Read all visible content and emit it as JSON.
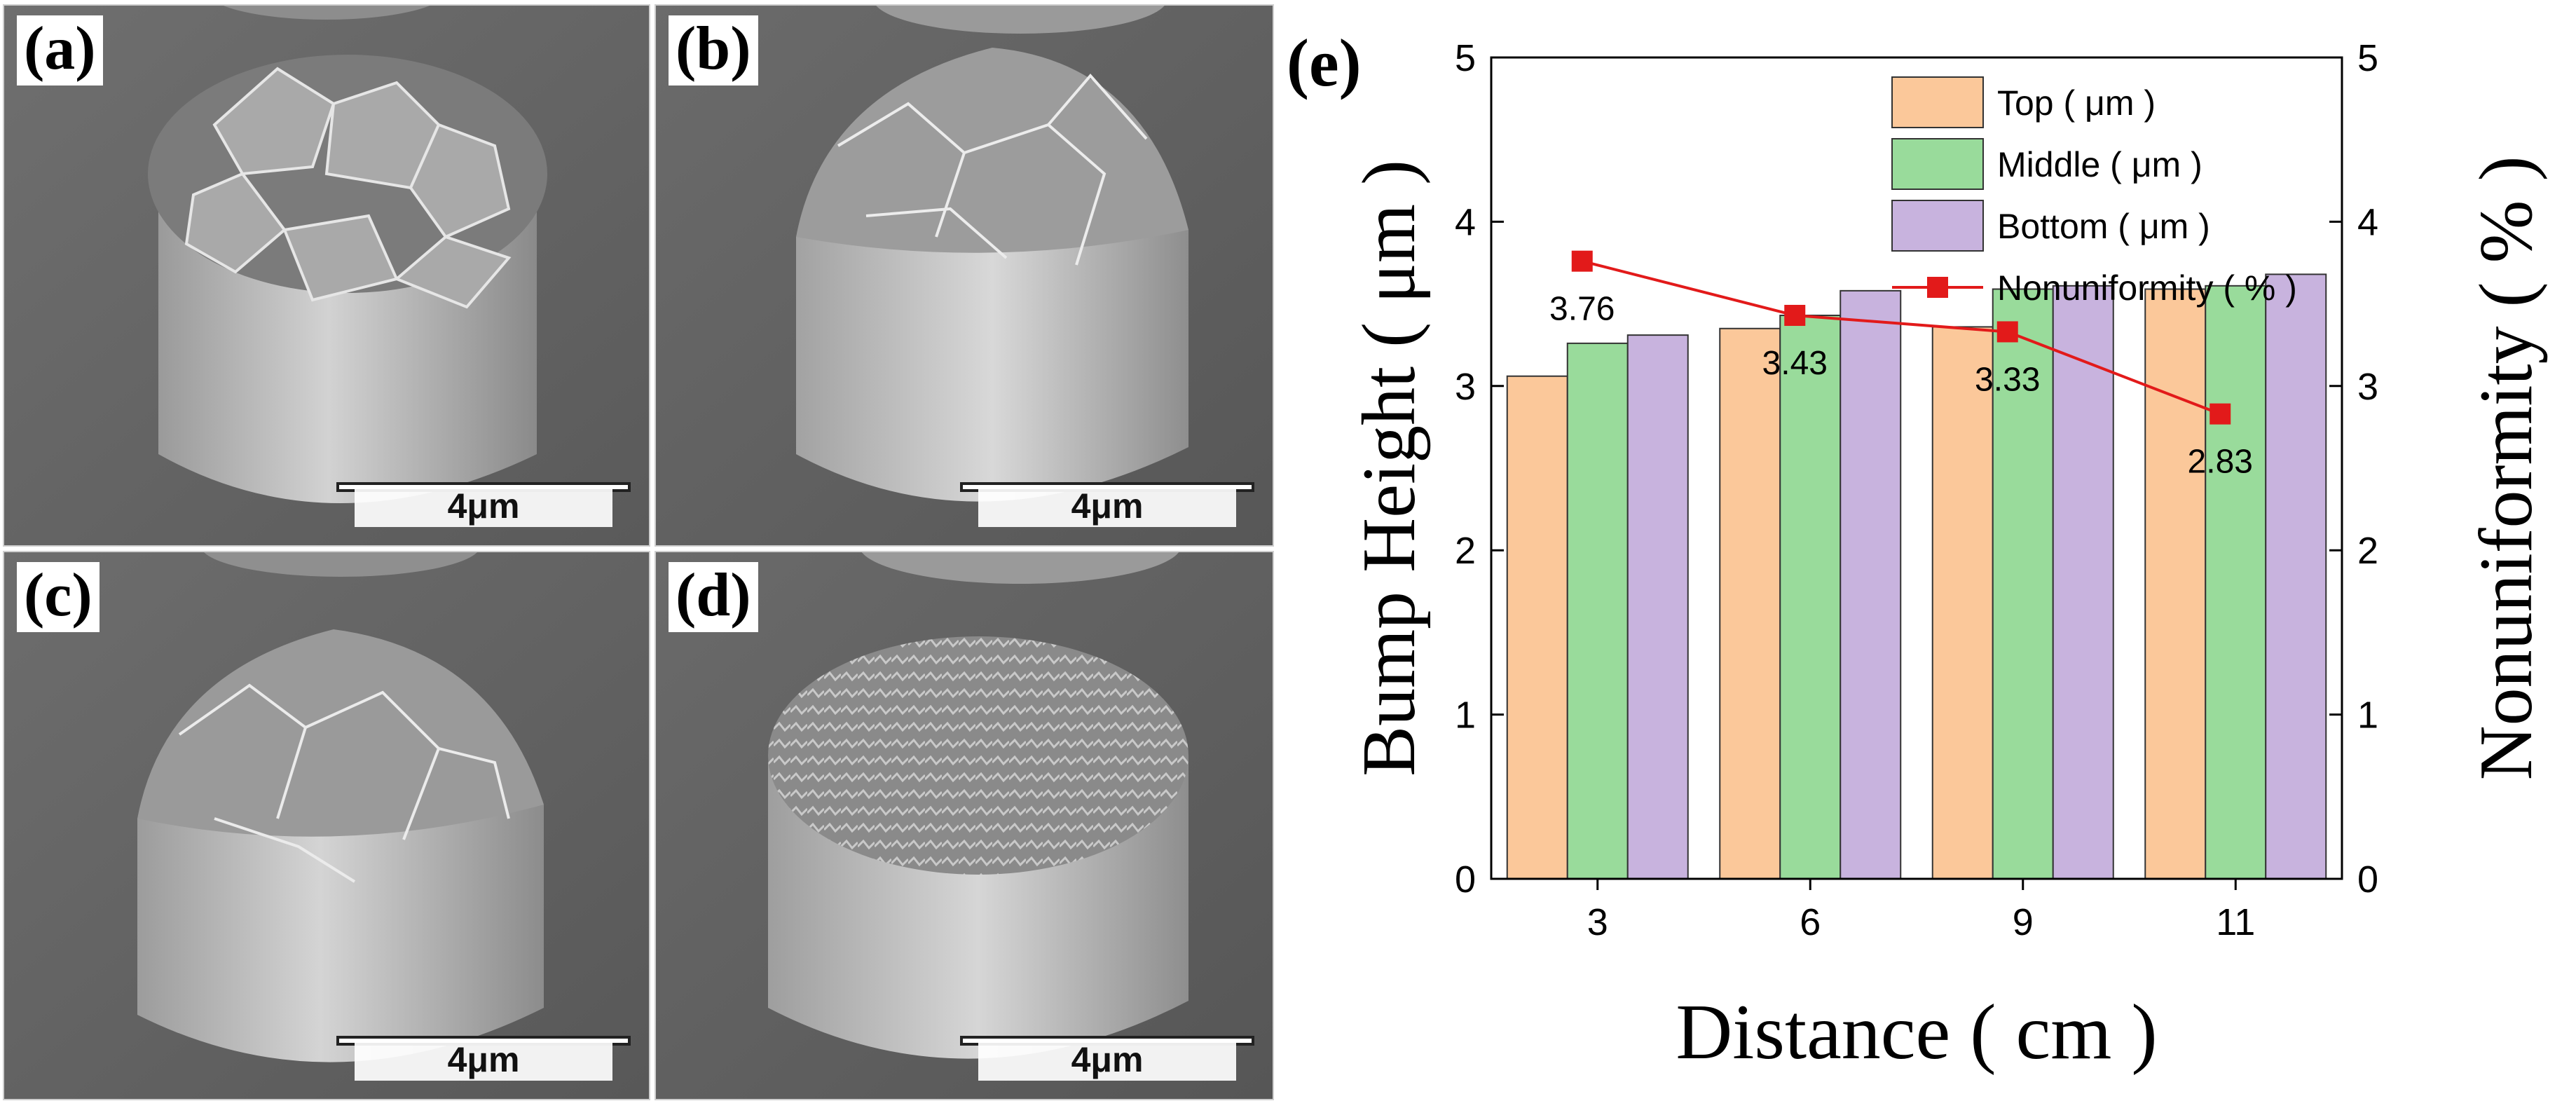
{
  "figure": {
    "panels": [
      {
        "label": "(a)",
        "scale_bar": "4μm"
      },
      {
        "label": "(b)",
        "scale_bar": "4μm"
      },
      {
        "label": "(c)",
        "scale_bar": "4μm"
      },
      {
        "label": "(d)",
        "scale_bar": "4μm"
      }
    ]
  },
  "chart_data": {
    "type": "bar",
    "panel_label": "(e)",
    "categories": [
      "3",
      "6",
      "9",
      "11"
    ],
    "xlabel": "Distance ( cm )",
    "ylabel": "Bump Height ( μm )",
    "ylabel_right": "Nonuniformity ( % )",
    "ylim": [
      0,
      5
    ],
    "ylim_right": [
      0,
      5
    ],
    "yticks": [
      "0",
      "1",
      "2",
      "3",
      "4",
      "5"
    ],
    "yticks_right": [
      "0",
      "1",
      "2",
      "3",
      "4",
      "5"
    ],
    "series": [
      {
        "name": "Top ( μm )",
        "values": [
          3.06,
          3.35,
          3.36,
          3.59
        ],
        "color": "#fbc89a"
      },
      {
        "name": "Middle ( μm )",
        "values": [
          3.26,
          3.43,
          3.59,
          3.61
        ],
        "color": "#99db9b"
      },
      {
        "name": "Bottom ( μm )",
        "values": [
          3.31,
          3.58,
          3.61,
          3.68
        ],
        "color": "#c8b3de"
      }
    ],
    "line_series": {
      "name": "Nonuniformity ( % )",
      "values": [
        3.76,
        3.43,
        3.33,
        2.83
      ],
      "labels": [
        "3.76",
        "3.43",
        "3.33",
        "2.83"
      ],
      "color": "#e21a1a",
      "axis": "right"
    },
    "legend_position": "top-right",
    "grid": false
  }
}
